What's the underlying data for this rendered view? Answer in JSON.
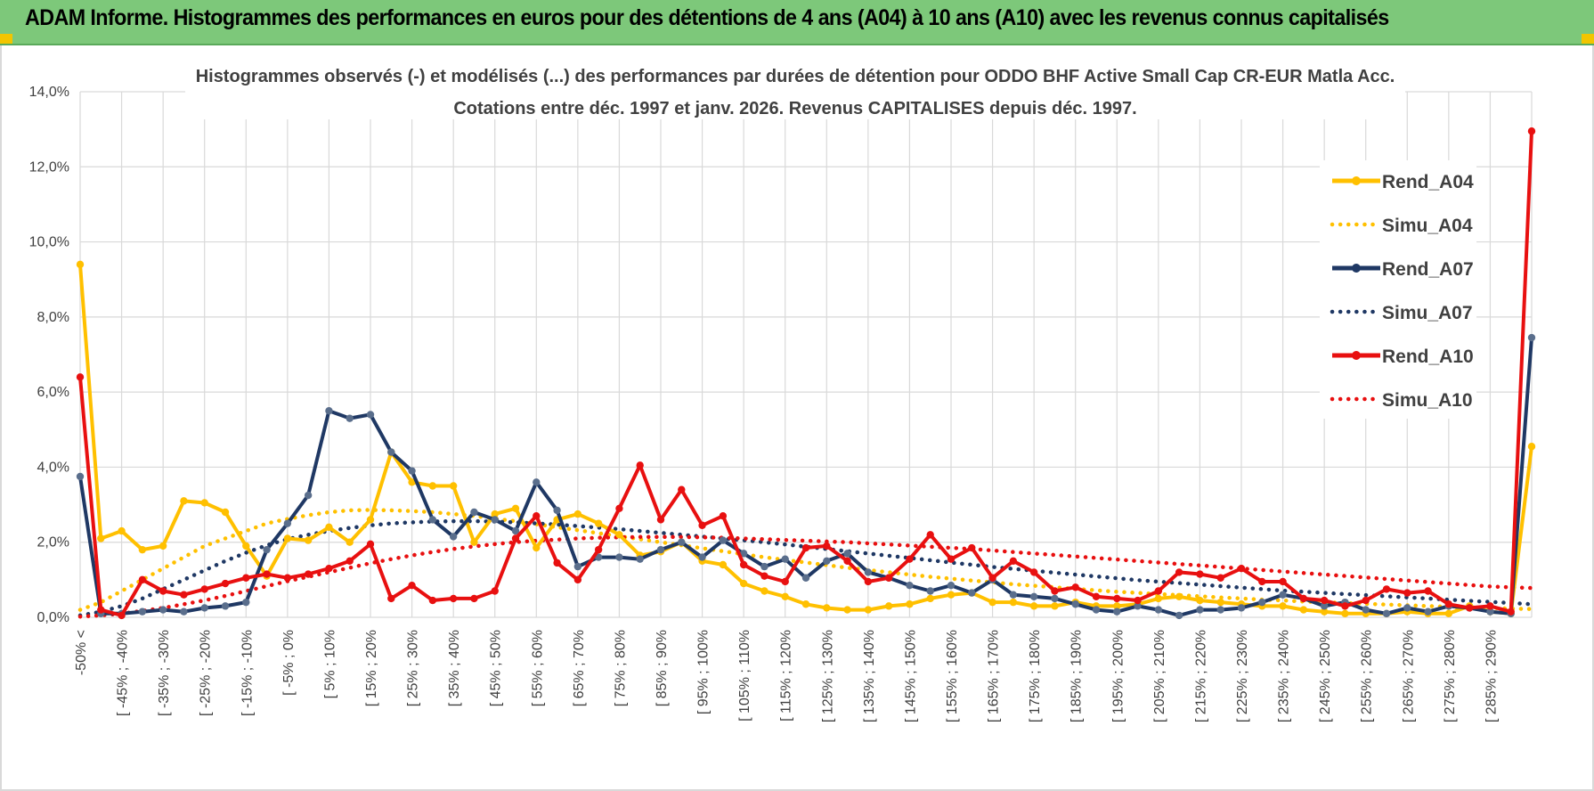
{
  "header": {
    "title": "ADAM Informe. Histogrammes des performances en euros pour des détentions de 4 ans (A04) à 10 ans (A10) avec les revenus connus capitalisés"
  },
  "colors": {
    "banner": "#7dc87a",
    "A04": "#ffc000",
    "A07": "#1f3864",
    "A10": "#e81010",
    "grid": "#d9d9d9",
    "text": "#404040"
  },
  "chart_data": {
    "type": "line",
    "title_line1": "Histogrammes observés (-) et modélisés (...) des performances par durées de détention pour ODDO BHF Active Small Cap CR-EUR Matla Acc.",
    "title_line2": "Cotations entre déc. 1997 et janv. 2026.  Revenus CAPITALISES depuis déc. 1997.",
    "ylim": [
      0,
      14
    ],
    "yticks": [
      0,
      2,
      4,
      6,
      8,
      10,
      12,
      14
    ],
    "ytick_labels": [
      "0,0%",
      "2,0%",
      "4,0%",
      "6,0%",
      "8,0%",
      "10,0%",
      "12,0%",
      "14,0%"
    ],
    "x_labels": [
      "-50% <",
      "[ -45% ; -40%",
      "[ -35% ; -30%",
      "[ -25% ; -20%",
      "[ -15% ; -10%",
      "[ -5% ; 0%",
      "[ 5% ; 10%",
      "[ 15% ; 20%",
      "[ 25% ; 30%",
      "[ 35% ; 40%",
      "[ 45% ; 50%",
      "[ 55% ; 60%",
      "[ 65% ; 70%",
      "[ 75% ; 80%",
      "[ 85% ; 90%",
      "[ 95% ; 100%",
      "[ 105% ; 110%",
      "[ 115% ; 120%",
      "[ 125% ; 130%",
      "[ 135% ; 140%",
      "[ 145% ; 150%",
      "[ 155% ; 160%",
      "[ 165% ; 170%",
      "[ 175% ; 180%",
      "[ 185% ; 190%",
      "[ 195% ; 200%",
      "[ 205% ; 210%",
      "[ 215% ; 220%",
      "[ 225% ; 230%",
      "[ 235% ; 240%",
      "[ 245% ; 250%",
      "[ 255% ; 260%",
      "[ 265% ; 270%",
      "[ 275% ; 280%",
      "[ 285% ; 290%"
    ],
    "n_points": 71,
    "legend": [
      "Rend_A04",
      "Simu_A04",
      "Rend_A07",
      "Simu_A07",
      "Rend_A10",
      "Simu_A10"
    ],
    "series": [
      {
        "name": "Rend_A04",
        "style": "solid",
        "color": "#ffc000",
        "values": [
          9.4,
          2.1,
          2.3,
          1.8,
          1.9,
          3.1,
          3.05,
          2.8,
          1.9,
          1.1,
          2.1,
          2.05,
          2.4,
          2.0,
          2.6,
          4.4,
          3.6,
          3.5,
          3.5,
          2.0,
          2.75,
          2.9,
          1.85,
          2.6,
          2.75,
          2.5,
          2.2,
          1.65,
          1.75,
          2.0,
          1.5,
          1.4,
          0.9,
          0.7,
          0.55,
          0.35,
          0.25,
          0.2,
          0.2,
          0.3,
          0.35,
          0.5,
          0.6,
          0.65,
          0.4,
          0.4,
          0.3,
          0.3,
          0.4,
          0.3,
          0.3,
          0.35,
          0.5,
          0.55,
          0.45,
          0.4,
          0.35,
          0.3,
          0.3,
          0.2,
          0.15,
          0.1,
          0.1,
          0.1,
          0.15,
          0.1,
          0.1,
          0.3,
          0.15,
          0.1,
          4.55
        ]
      },
      {
        "name": "Simu_A04",
        "style": "dotted",
        "color": "#ffc000",
        "values": [
          0.2,
          0.4,
          0.7,
          1.0,
          1.3,
          1.6,
          1.9,
          2.1,
          2.3,
          2.5,
          2.62,
          2.72,
          2.8,
          2.85,
          2.86,
          2.85,
          2.83,
          2.8,
          2.75,
          2.7,
          2.63,
          2.56,
          2.48,
          2.4,
          2.32,
          2.24,
          2.16,
          2.08,
          2.0,
          1.92,
          1.84,
          1.76,
          1.68,
          1.6,
          1.53,
          1.46,
          1.39,
          1.32,
          1.26,
          1.2,
          1.14,
          1.08,
          1.03,
          0.98,
          0.93,
          0.88,
          0.84,
          0.8,
          0.76,
          0.72,
          0.68,
          0.65,
          0.62,
          0.59,
          0.56,
          0.53,
          0.5,
          0.47,
          0.45,
          0.42,
          0.4,
          0.38,
          0.36,
          0.34,
          0.32,
          0.3,
          0.28,
          0.26,
          0.25,
          0.23,
          0.22
        ]
      },
      {
        "name": "Rend_A07",
        "style": "solid",
        "color": "#1f3864",
        "values": [
          3.75,
          0.1,
          0.1,
          0.15,
          0.2,
          0.15,
          0.25,
          0.3,
          0.4,
          1.8,
          2.5,
          3.25,
          5.5,
          5.3,
          5.4,
          4.4,
          3.9,
          2.6,
          2.15,
          2.8,
          2.6,
          2.3,
          3.6,
          2.85,
          1.35,
          1.6,
          1.6,
          1.55,
          1.8,
          2.0,
          1.6,
          2.05,
          1.7,
          1.35,
          1.55,
          1.05,
          1.5,
          1.7,
          1.2,
          1.05,
          0.85,
          0.7,
          0.85,
          0.65,
          1.0,
          0.6,
          0.55,
          0.5,
          0.35,
          0.2,
          0.15,
          0.3,
          0.2,
          0.05,
          0.2,
          0.2,
          0.25,
          0.4,
          0.6,
          0.5,
          0.3,
          0.4,
          0.2,
          0.1,
          0.25,
          0.15,
          0.3,
          0.25,
          0.15,
          0.1,
          7.45
        ]
      },
      {
        "name": "Simu_A07",
        "style": "dotted",
        "color": "#1f3864",
        "values": [
          0.05,
          0.15,
          0.3,
          0.5,
          0.75,
          1.0,
          1.25,
          1.5,
          1.72,
          1.92,
          2.08,
          2.2,
          2.3,
          2.38,
          2.45,
          2.5,
          2.53,
          2.55,
          2.56,
          2.56,
          2.55,
          2.53,
          2.5,
          2.47,
          2.43,
          2.39,
          2.35,
          2.3,
          2.25,
          2.2,
          2.15,
          2.1,
          2.05,
          2.0,
          1.94,
          1.88,
          1.82,
          1.76,
          1.7,
          1.64,
          1.58,
          1.52,
          1.46,
          1.4,
          1.34,
          1.29,
          1.24,
          1.19,
          1.14,
          1.09,
          1.04,
          0.99,
          0.95,
          0.91,
          0.87,
          0.83,
          0.79,
          0.75,
          0.71,
          0.68,
          0.65,
          0.62,
          0.59,
          0.56,
          0.53,
          0.5,
          0.47,
          0.44,
          0.41,
          0.38,
          0.35
        ]
      },
      {
        "name": "Rend_A10",
        "style": "solid",
        "color": "#e81010",
        "values": [
          6.4,
          0.2,
          0.05,
          1.0,
          0.7,
          0.6,
          0.75,
          0.9,
          1.05,
          1.15,
          1.05,
          1.15,
          1.3,
          1.5,
          1.95,
          0.5,
          0.85,
          0.45,
          0.5,
          0.5,
          0.7,
          2.1,
          2.7,
          1.45,
          1.0,
          1.8,
          2.9,
          4.05,
          2.6,
          3.4,
          2.45,
          2.7,
          1.4,
          1.1,
          0.95,
          1.85,
          1.9,
          1.5,
          0.95,
          1.05,
          1.55,
          2.2,
          1.55,
          1.85,
          1.05,
          1.5,
          1.2,
          0.7,
          0.8,
          0.55,
          0.5,
          0.45,
          0.7,
          1.2,
          1.15,
          1.05,
          1.3,
          0.95,
          0.95,
          0.5,
          0.45,
          0.3,
          0.45,
          0.75,
          0.65,
          0.7,
          0.35,
          0.25,
          0.3,
          0.15,
          12.95
        ]
      },
      {
        "name": "Simu_A10",
        "style": "dotted",
        "color": "#e81010",
        "values": [
          0.02,
          0.05,
          0.1,
          0.17,
          0.25,
          0.35,
          0.45,
          0.57,
          0.7,
          0.83,
          0.96,
          1.08,
          1.2,
          1.32,
          1.44,
          1.55,
          1.65,
          1.74,
          1.82,
          1.89,
          1.95,
          2.0,
          2.04,
          2.07,
          2.1,
          2.12,
          2.13,
          2.14,
          2.14,
          2.14,
          2.13,
          2.12,
          2.1,
          2.08,
          2.06,
          2.04,
          2.02,
          2.0,
          1.97,
          1.94,
          1.91,
          1.88,
          1.85,
          1.82,
          1.78,
          1.74,
          1.7,
          1.66,
          1.62,
          1.58,
          1.54,
          1.5,
          1.46,
          1.42,
          1.38,
          1.34,
          1.3,
          1.26,
          1.22,
          1.18,
          1.14,
          1.1,
          1.06,
          1.02,
          0.98,
          0.94,
          0.9,
          0.86,
          0.82,
          0.8,
          0.78
        ]
      }
    ]
  }
}
